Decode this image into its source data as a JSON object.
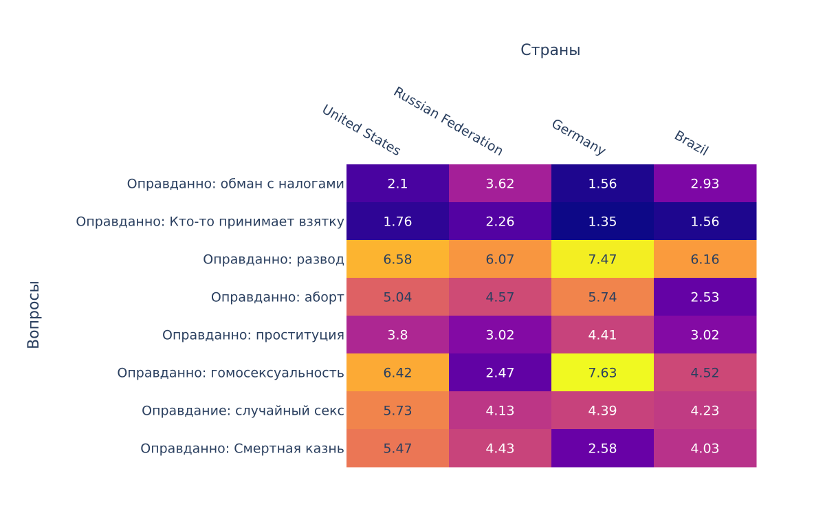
{
  "chart_data": {
    "type": "heatmap",
    "title": "",
    "xlabel": "Страны",
    "ylabel": "Вопросы",
    "x_categories": [
      "United States",
      "Russian Federation",
      "Germany",
      "Brazil"
    ],
    "y_categories": [
      "Оправданно: обман с налогами",
      "Оправданно: Кто-то принимает взятку",
      "Оправданно: развод",
      "Оправданно: аборт",
      "Оправданно: проституция",
      "Оправданно: гомосексуальность",
      "Оправдание: случайный секс",
      "Оправданно: Смертная казнь"
    ],
    "values": [
      [
        2.1,
        3.62,
        1.56,
        2.93
      ],
      [
        1.76,
        2.26,
        1.35,
        1.56
      ],
      [
        6.58,
        6.07,
        7.47,
        6.16
      ],
      [
        5.04,
        4.57,
        5.74,
        2.53
      ],
      [
        3.8,
        3.02,
        4.41,
        3.02
      ],
      [
        6.42,
        2.47,
        7.63,
        4.52
      ],
      [
        5.73,
        4.13,
        4.39,
        4.23
      ],
      [
        5.47,
        4.43,
        2.58,
        4.03
      ]
    ],
    "value_labels": [
      [
        "2.1",
        "3.62",
        "1.56",
        "2.93"
      ],
      [
        "1.76",
        "2.26",
        "1.35",
        "1.56"
      ],
      [
        "6.58",
        "6.07",
        "7.47",
        "6.16"
      ],
      [
        "5.04",
        "4.57",
        "5.74",
        "2.53"
      ],
      [
        "3.8",
        "3.02",
        "4.41",
        "3.02"
      ],
      [
        "6.42",
        "2.47",
        "7.63",
        "4.52"
      ],
      [
        "5.73",
        "4.13",
        "4.39",
        "4.23"
      ],
      [
        "5.47",
        "4.43",
        "2.58",
        "4.03"
      ]
    ],
    "colorscale": "plasma",
    "zlim": [
      1.35,
      7.63
    ],
    "colorscale_stops": [
      "#0d0887",
      "#46039f",
      "#7201a8",
      "#9c179e",
      "#bd3786",
      "#d8576b",
      "#ed7953",
      "#fb9f3a",
      "#fdca26",
      "#f0f921"
    ],
    "text_color_dark": "#2a3f5f",
    "text_color_light": "#ffffff"
  }
}
